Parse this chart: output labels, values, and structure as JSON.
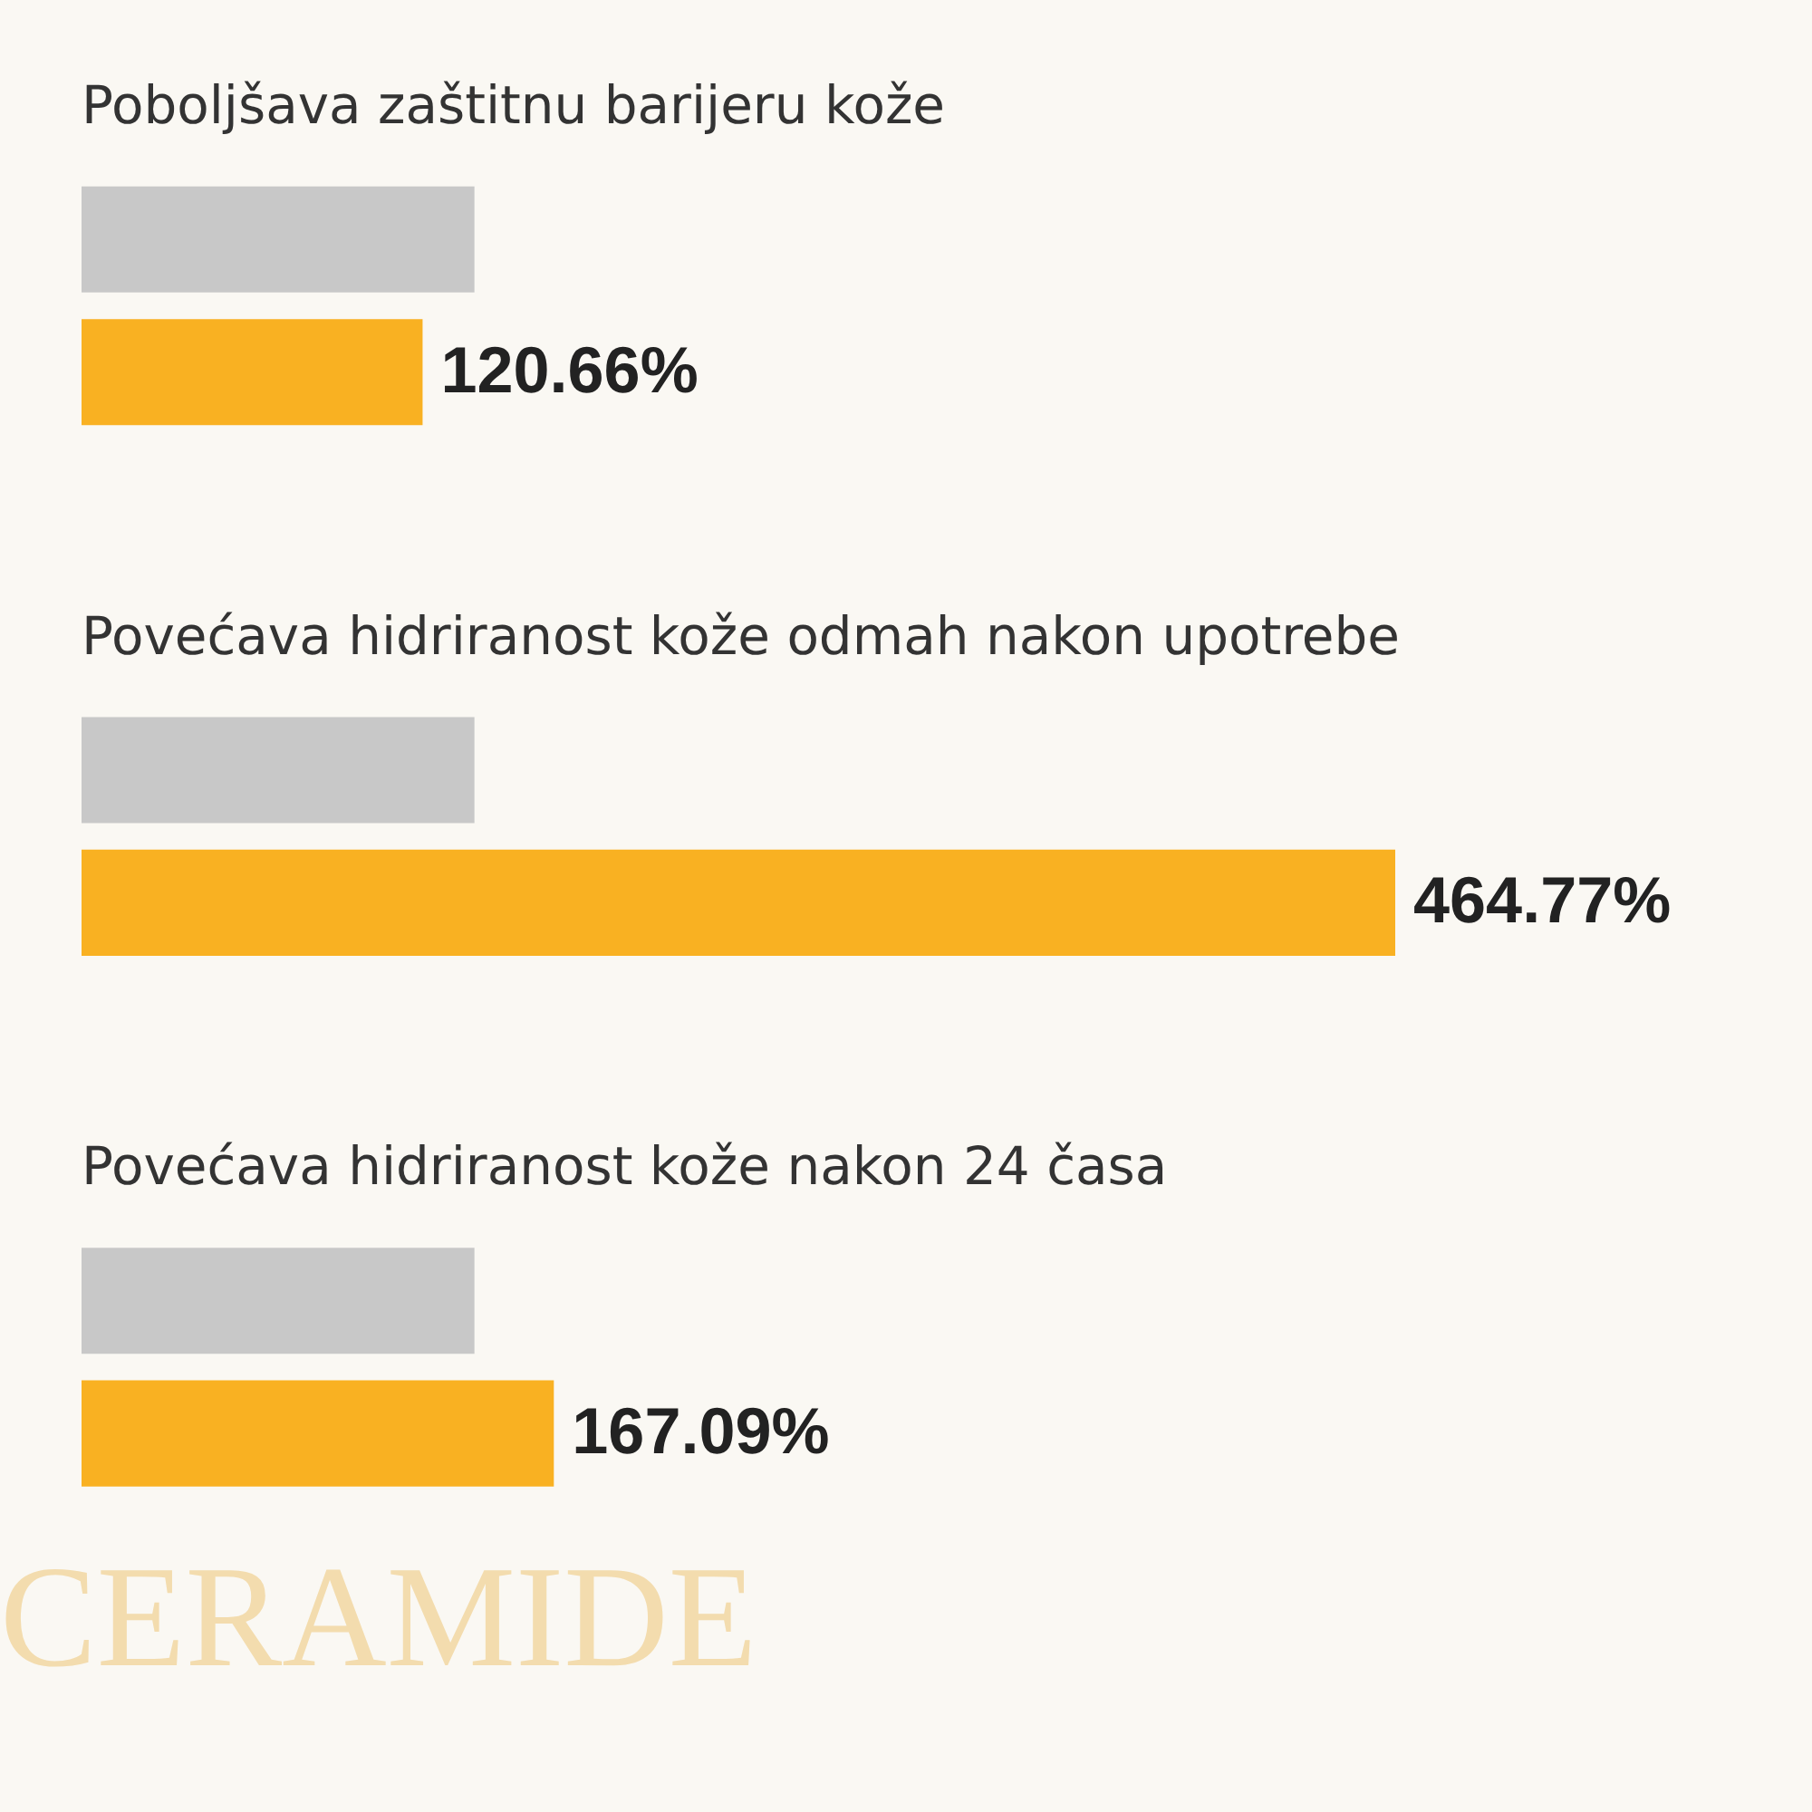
{
  "chart_data": {
    "type": "bar",
    "orientation": "horizontal",
    "categories": [
      "Poboljšava zaštitnu barijeru kože",
      "Povećava hidriranost kože odmah nakon upotrebe",
      "Povećava hidriranost kože nakon 24 časa"
    ],
    "series": [
      {
        "color": "#c8c8c8",
        "values": [
          139,
          139,
          139
        ]
      },
      {
        "color": "#f9b122",
        "values": [
          120.66,
          464.77,
          167.09
        ],
        "value_labels": [
          "120.66%",
          "464.77%",
          "167.09%"
        ]
      }
    ],
    "annotations": [
      "CERAMIDE"
    ]
  }
}
